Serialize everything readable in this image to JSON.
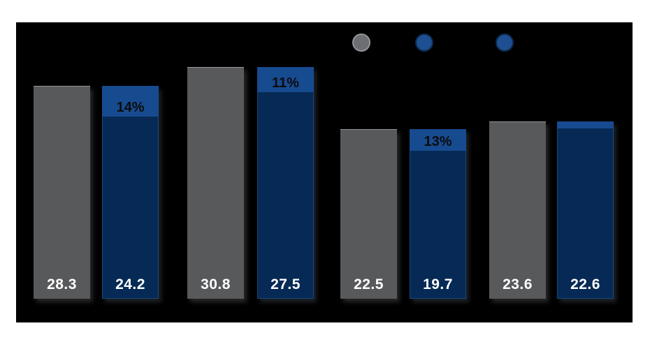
{
  "page": {
    "background": "#ffffff",
    "panel_background": "#000000"
  },
  "legend": {
    "markers": [
      {
        "name": "gray-series-marker",
        "fill": "#6d6e71",
        "ring": "#939598"
      },
      {
        "name": "blue-series-marker",
        "fill": "#1d4f91",
        "ring": "#0d2b50"
      },
      {
        "name": "blue-series-marker-2",
        "fill": "#1d4f91",
        "ring": "#0d2b50"
      }
    ]
  },
  "chart_data": {
    "type": "bar",
    "subtype": "grouped-with-stacked-reduction-cap",
    "title": "",
    "grid": false,
    "axes_visible": false,
    "legend_position": "top-center-right",
    "groups": [
      {
        "gray_value": 28.3,
        "gray_label": "28.3",
        "blue_value": 24.2,
        "blue_label": "24.2",
        "reduction_label": "14%"
      },
      {
        "gray_value": 30.8,
        "gray_label": "30.8",
        "blue_value": 27.5,
        "blue_label": "27.5",
        "reduction_label": "11%"
      },
      {
        "gray_value": 22.5,
        "gray_label": "22.5",
        "blue_value": 19.7,
        "blue_label": "19.7",
        "reduction_label": "13%"
      },
      {
        "gray_value": 23.6,
        "gray_label": "23.6",
        "blue_value": 22.6,
        "blue_label": "22.6",
        "reduction_label": ""
      }
    ],
    "colors": {
      "gray_bar": "#58595b",
      "blue_bar": "#062a55",
      "blue_cap": "#174b90",
      "value_text": "#ffffff",
      "pct_text": "#0b0c0e"
    }
  }
}
